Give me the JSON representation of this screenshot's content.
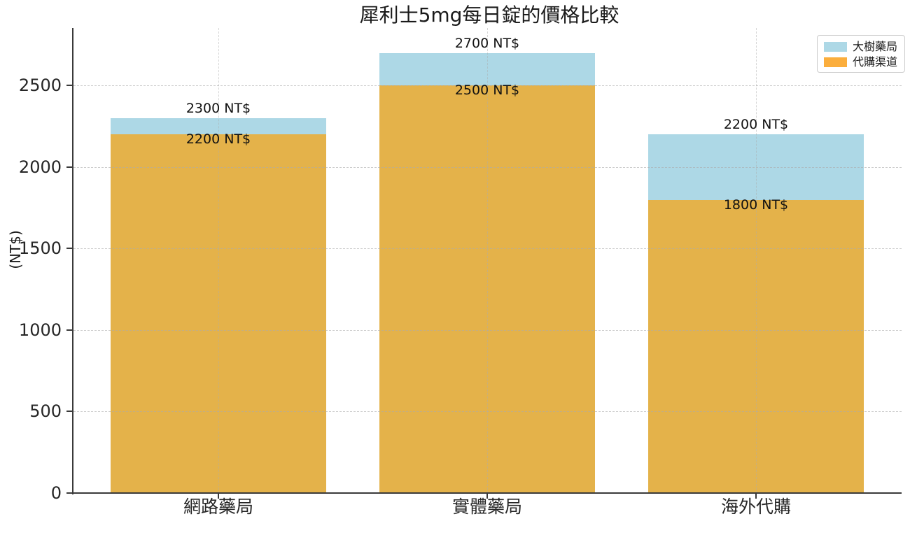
{
  "chart_data": {
    "type": "bar",
    "bar_mode": "overlay",
    "title": "犀利士5mg每日錠的價格比較",
    "ylabel": "(NT$)",
    "categories": [
      "網路藥局",
      "實體藥局",
      "海外代購"
    ],
    "series": [
      {
        "name": "大樹藥局",
        "values": [
          2300,
          2700,
          2200
        ],
        "labels": [
          "2300 NT$",
          "2700 NT$",
          "2200 NT$"
        ],
        "color": "#ADD8E6",
        "legend_color": "#ADD8E6"
      },
      {
        "name": "代購渠道",
        "values": [
          2200,
          2500,
          1800
        ],
        "labels": [
          "2200 NT$",
          "2500 NT$",
          "1800 NT$"
        ],
        "color": "#E4B24A",
        "legend_color": "#FBAE3D"
      }
    ],
    "yticks": [
      0,
      500,
      1000,
      1500,
      2000,
      2500
    ],
    "ylim": [
      0,
      2854
    ],
    "grid": "dashed",
    "legend_position": "upper-right",
    "colors": {
      "axis": "#3a3a3a",
      "text": "#1c1c1c",
      "grid": "#acacac",
      "background": "#ffffff"
    }
  }
}
